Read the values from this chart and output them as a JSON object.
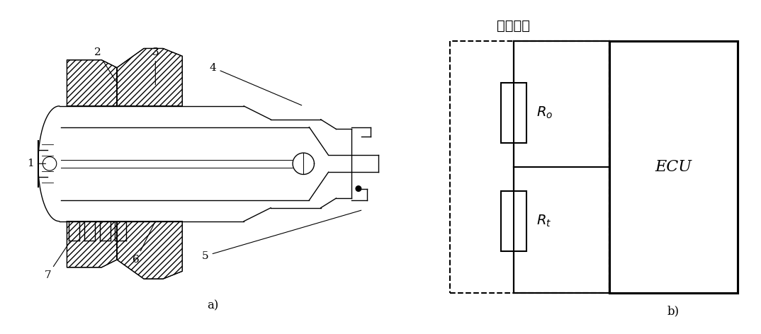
{
  "label_a": "a)",
  "label_b": "b)",
  "sensor_label": "氧传感器",
  "ecu_label": "ECU",
  "ro_label": "$R_o$",
  "rt_label": "$R_t$",
  "line_color": "#000000",
  "bg_color": "#ffffff"
}
